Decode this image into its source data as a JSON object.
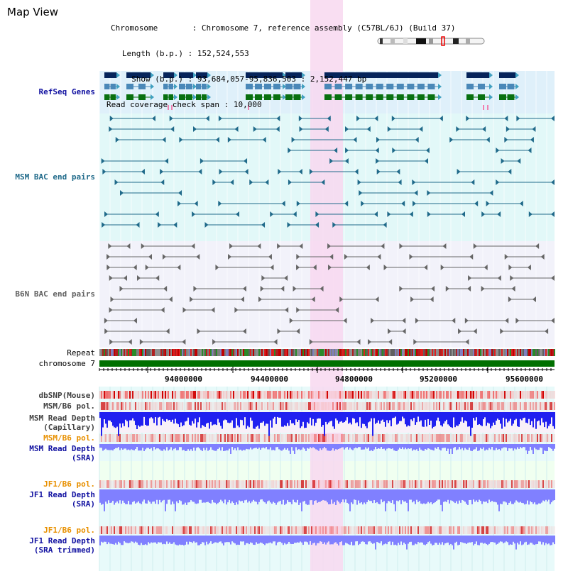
{
  "title": "Map View",
  "info": {
    "chromosome_key": "Chromosome",
    "chromosome_value": "Chromosome 7, reference assembly (C57BL/6J) (Build 37)",
    "length_key": "Length (b.p.)",
    "length_value": "152,524,553",
    "show_key": "Show (b.p.)",
    "show_value": "93,684,057-95,836,503 : 2,152,447 bp",
    "coverage_key": "Read coverage check span",
    "coverage_value": "10,000"
  },
  "tracks": {
    "refseq": "RefSeq Genes",
    "msm_bac": "MSM BAC end pairs",
    "b6n_bac": "B6N BAC end pairs",
    "repeat": "Repeat",
    "chromosome": "chromosome 7",
    "dbsnp": "dbSNP(Mouse)",
    "msm_b6_pol_1": "MSM/B6 pol.",
    "msm_depth_cap_1": "MSM Read Depth",
    "msm_depth_cap_2": "(Capillary)",
    "msm_b6_pol_2": "MSM/B6 pol.",
    "msm_depth_sra_1": "MSM Read Depth",
    "msm_depth_sra_2": "(SRA)",
    "jf1_b6_pol_1": "JF1/B6 pol.",
    "jf1_depth_sra_1": "JF1 Read Depth",
    "jf1_depth_sra_2": "(SRA)",
    "jf1_b6_pol_2": "JF1/B6 pol.",
    "jf1_depth_trim_1": "JF1 Read Depth",
    "jf1_depth_trim_2": "(SRA trimmed)"
  },
  "axis": {
    "ticks": [
      "94000000",
      "94400000",
      "94800000",
      "95200000",
      "95600000"
    ]
  },
  "colors": {
    "highlight": "#f8d8f0",
    "refseq_bg": "#dff0fa",
    "bac_bg": "#e2f8f8",
    "b6n_bg": "#f2f2fa",
    "gene_navy": "#06245a",
    "gene_steel": "#4a88b8",
    "gene_green": "#087010",
    "bac_teal": "#206a8a",
    "bac_gray": "#666666",
    "chrom_green": "#007000",
    "depth_blue": "#2020f0",
    "depth_light_blue": "#8080ff",
    "label_blue": "#1010a0",
    "label_orange": "#e89000"
  }
}
